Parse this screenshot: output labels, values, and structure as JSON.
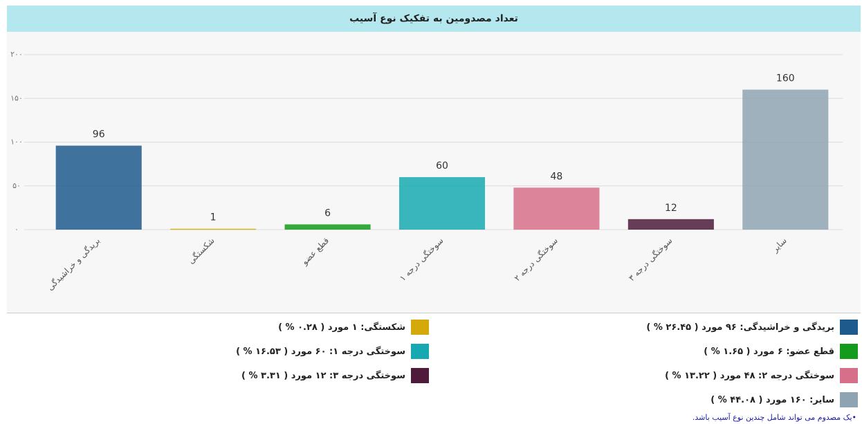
{
  "chart_data": {
    "type": "bar",
    "title": "تعداد مصدومین به تفکیک نوع آسیب",
    "categories": [
      "بریدگی و خراشیدگی",
      "شکستگی",
      "قطع عضو",
      "سوختگی درجه ۱",
      "سوختگی درجه ۲",
      "سوختگی درجه ۳",
      "سایر"
    ],
    "values": [
      96,
      1,
      6,
      60,
      48,
      12,
      160
    ],
    "colors": [
      "#1f5a8c",
      "#d4a90a",
      "#139b1b",
      "#17a9b1",
      "#d6708a",
      "#4e1b3a",
      "#8fa4b2"
    ],
    "ylim": [
      0,
      200
    ],
    "yticks": [
      {
        "value": 0,
        "label": "۰"
      },
      {
        "value": 50,
        "label": "۵۰"
      },
      {
        "value": 100,
        "label": "۱۰۰"
      },
      {
        "value": 150,
        "label": "۱۵۰"
      },
      {
        "value": 200,
        "label": "۲۰۰"
      }
    ],
    "grid": true,
    "legend": [
      "بریدگی و خراشیدگی: ۹۶ مورد ( ۲۶.۴۵ % )",
      "شکستگی: ۱ مورد ( ۰.۲۸ % )",
      "قطع عضو: ۶ مورد ( ۱.۶۵ % )",
      "سوختگی درجه ۱: ۶۰ مورد ( ۱۶.۵۳ % )",
      "سوختگی درجه ۲: ۴۸ مورد ( ۱۳.۲۲ % )",
      "سوختگی درجه ۳: ۱۲ مورد ( ۳.۳۱ % )",
      "سایر: ۱۶۰ مورد ( ۴۴.۰۸ % )"
    ],
    "note": "یک مصدوم می تواند شامل چندین نوع آسیب باشد."
  }
}
